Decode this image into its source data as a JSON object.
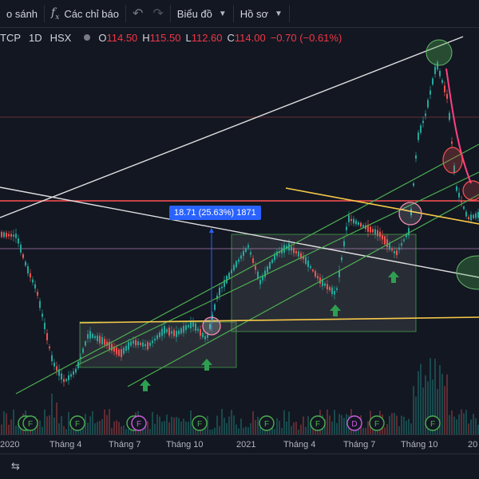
{
  "toolbar": {
    "compare_label": "o sánh",
    "indicators_label": "Các chỉ báo",
    "chart_label": "Biểu đồ",
    "profile_label": "Hồ sơ"
  },
  "legend": {
    "symbol": "TCP",
    "interval": "1D",
    "exchange": "HSX",
    "open_key": "O",
    "open_val": "114.50",
    "high_key": "H",
    "high_val": "115.50",
    "low_key": "L",
    "low_val": "112.60",
    "close_key": "C",
    "close_val": "114.00",
    "change_val": "−0.70 (−0.61%)"
  },
  "measure_label": "18.71 (25.63%) 1871",
  "event_marker_letters": [
    "F",
    "D"
  ],
  "x_axis_labels": [
    "2020",
    "Tháng 4",
    "Tháng 7",
    "Tháng 10",
    "2021",
    "Tháng 4",
    "Tháng 7",
    "Tháng 10",
    "20"
  ],
  "colors": {
    "background": "#131722",
    "up": "#26a69a",
    "down": "#ef5350",
    "channel": "#4caf50",
    "level": "#f7c948",
    "resistance": "#ff5252",
    "trend": "#e0e0e0",
    "measure": "#2962ff"
  }
}
